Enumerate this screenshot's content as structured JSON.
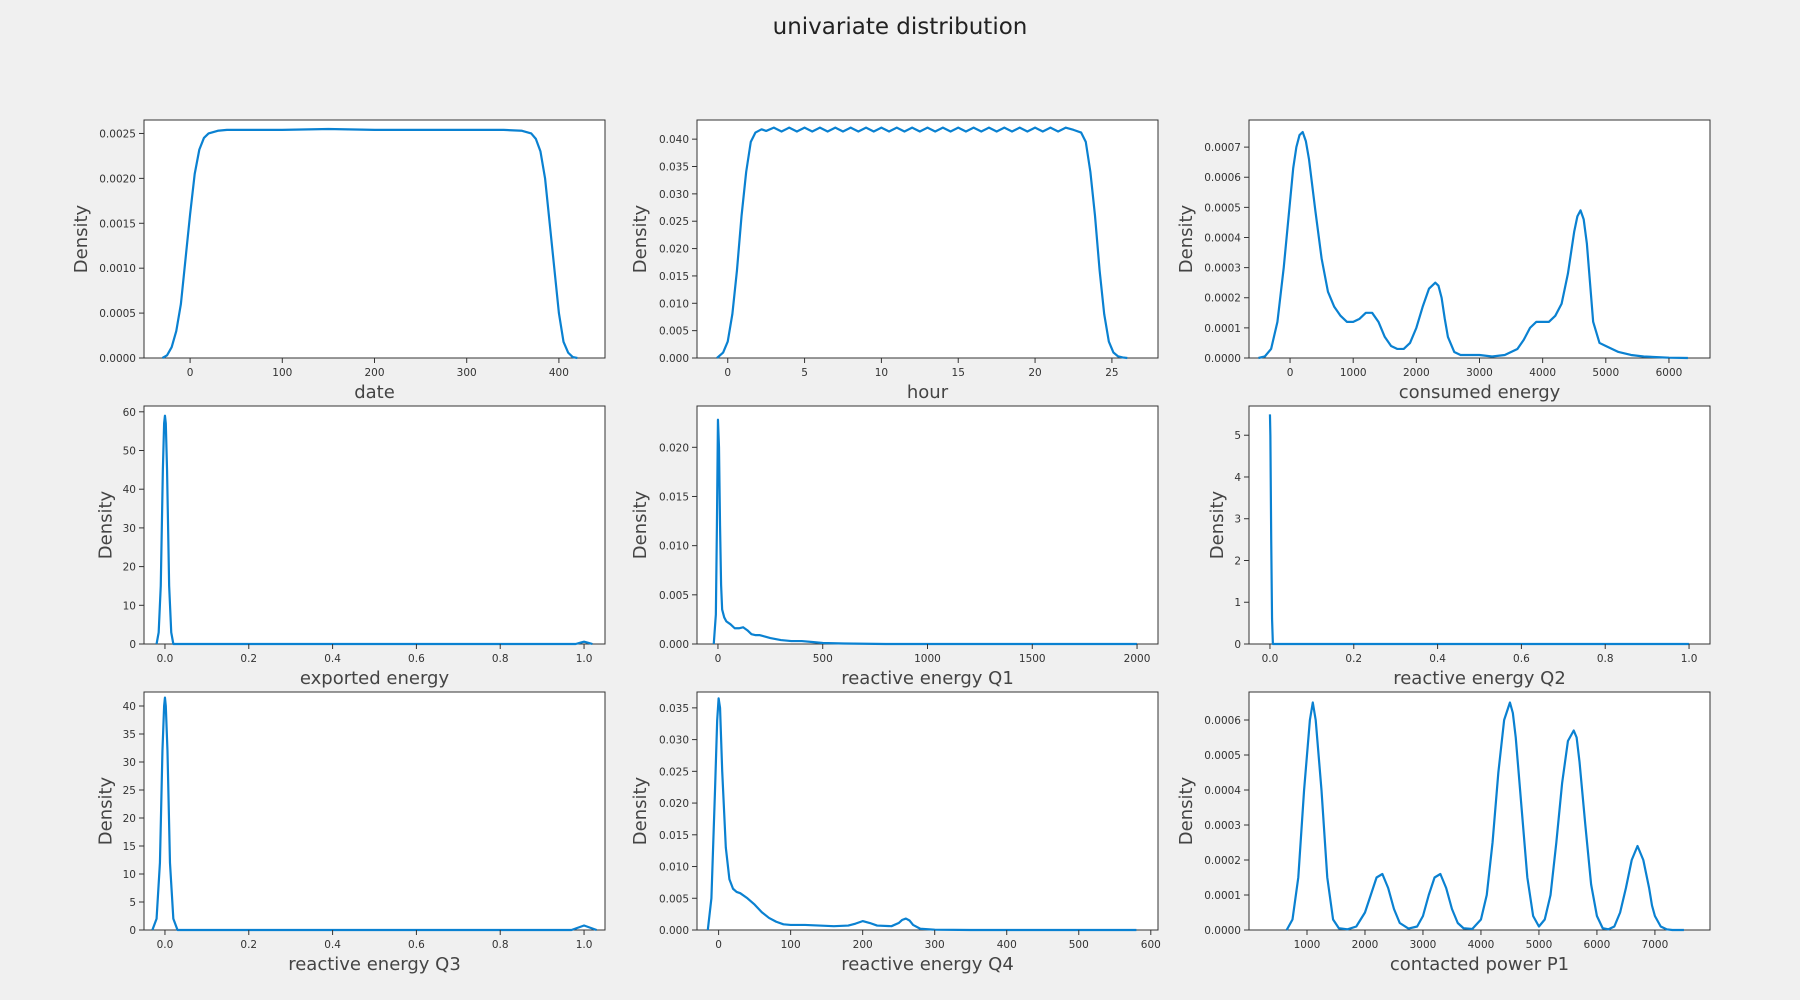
{
  "figure": {
    "title": "univariate distribution",
    "background": "#f0f0f0",
    "line_color": "#0a81d1"
  },
  "chart_data": [
    {
      "type": "line",
      "xlabel": "date",
      "ylabel": "Density",
      "xlim": [
        -50,
        450
      ],
      "ylim": [
        0,
        0.00265
      ],
      "xticks": [
        0,
        100,
        200,
        300,
        400
      ],
      "xtick_labels": [
        "0",
        "100",
        "200",
        "300",
        "400"
      ],
      "yticks": [
        0,
        0.0005,
        0.001,
        0.0015,
        0.002,
        0.0025
      ],
      "ytick_labels": [
        "0.0000",
        "0.0005",
        "0.0010",
        "0.0015",
        "0.0020",
        "0.0025"
      ],
      "x": [
        -30,
        -25,
        -20,
        -15,
        -10,
        -5,
        0,
        5,
        10,
        15,
        20,
        30,
        40,
        60,
        100,
        150,
        200,
        250,
        300,
        340,
        360,
        370,
        375,
        380,
        385,
        390,
        395,
        400,
        405,
        410,
        415,
        420
      ],
      "y": [
        0.0,
        3e-05,
        0.00012,
        0.0003,
        0.0006,
        0.0011,
        0.0016,
        0.00205,
        0.00232,
        0.00245,
        0.0025,
        0.00253,
        0.00254,
        0.00254,
        0.00254,
        0.00255,
        0.00254,
        0.00254,
        0.00254,
        0.00254,
        0.00253,
        0.0025,
        0.00244,
        0.0023,
        0.002,
        0.0015,
        0.001,
        0.0005,
        0.00018,
        6e-05,
        1e-05,
        0.0
      ]
    },
    {
      "type": "line",
      "xlabel": "hour",
      "ylabel": "Density",
      "xlim": [
        -2,
        28
      ],
      "ylim": [
        0,
        0.0435
      ],
      "xticks": [
        0,
        5,
        10,
        15,
        20,
        25
      ],
      "xtick_labels": [
        "0",
        "5",
        "10",
        "15",
        "20",
        "25"
      ],
      "yticks": [
        0,
        0.005,
        0.01,
        0.015,
        0.02,
        0.025,
        0.03,
        0.035,
        0.04
      ],
      "ytick_labels": [
        "0.000",
        "0.005",
        "0.010",
        "0.015",
        "0.020",
        "0.025",
        "0.030",
        "0.035",
        "0.040"
      ],
      "x": [
        -0.7,
        -0.3,
        0,
        0.3,
        0.6,
        0.9,
        1.2,
        1.5,
        1.8,
        2.2,
        2.5,
        3,
        3.5,
        4,
        4.5,
        5,
        5.5,
        6,
        6.5,
        7,
        7.5,
        8,
        8.5,
        9,
        9.5,
        10,
        10.5,
        11,
        11.5,
        12,
        12.5,
        13,
        13.5,
        14,
        14.5,
        15,
        15.5,
        16,
        16.5,
        17,
        17.5,
        18,
        18.5,
        19,
        19.5,
        20,
        20.5,
        21,
        21.5,
        22,
        22.5,
        23,
        23.3,
        23.6,
        23.9,
        24.2,
        24.5,
        24.8,
        25.1,
        25.4,
        25.7,
        26
      ],
      "y": [
        0.0,
        0.001,
        0.003,
        0.008,
        0.016,
        0.026,
        0.034,
        0.0395,
        0.0412,
        0.0418,
        0.0415,
        0.0421,
        0.0414,
        0.0421,
        0.0414,
        0.0421,
        0.0414,
        0.0421,
        0.0414,
        0.0421,
        0.0414,
        0.0421,
        0.0414,
        0.0421,
        0.0414,
        0.0421,
        0.0414,
        0.0421,
        0.0414,
        0.0421,
        0.0414,
        0.0421,
        0.0414,
        0.0421,
        0.0414,
        0.0421,
        0.0414,
        0.0421,
        0.0414,
        0.0421,
        0.0414,
        0.0421,
        0.0414,
        0.0421,
        0.0414,
        0.0421,
        0.0414,
        0.0421,
        0.0414,
        0.0421,
        0.0417,
        0.0412,
        0.0395,
        0.034,
        0.026,
        0.016,
        0.008,
        0.003,
        0.001,
        0.0003,
        0.0001,
        0.0
      ]
    },
    {
      "type": "line",
      "xlabel": "consumed energy",
      "ylabel": "Density",
      "xlim": [
        -650,
        6650
      ],
      "ylim": [
        0,
        0.00079
      ],
      "xticks": [
        0,
        1000,
        2000,
        3000,
        4000,
        5000,
        6000
      ],
      "xtick_labels": [
        "0",
        "1000",
        "2000",
        "3000",
        "4000",
        "5000",
        "6000"
      ],
      "yticks": [
        0,
        0.0001,
        0.0002,
        0.0003,
        0.0004,
        0.0005,
        0.0006,
        0.0007
      ],
      "ytick_labels": [
        "0.0000",
        "0.0001",
        "0.0002",
        "0.0003",
        "0.0004",
        "0.0005",
        "0.0006",
        "0.0007"
      ],
      "x": [
        -500,
        -400,
        -300,
        -200,
        -100,
        0,
        50,
        100,
        150,
        200,
        250,
        300,
        400,
        500,
        600,
        700,
        800,
        900,
        1000,
        1100,
        1200,
        1300,
        1400,
        1500,
        1600,
        1700,
        1800,
        1900,
        2000,
        2100,
        2200,
        2300,
        2350,
        2400,
        2450,
        2500,
        2600,
        2700,
        2800,
        3000,
        3200,
        3400,
        3600,
        3700,
        3800,
        3900,
        4000,
        4100,
        4200,
        4300,
        4400,
        4500,
        4550,
        4600,
        4650,
        4700,
        4750,
        4800,
        4900,
        5000,
        5100,
        5200,
        5400,
        5600,
        5800,
        6000,
        6300
      ],
      "y": [
        0.0,
        5e-06,
        3e-05,
        0.00012,
        0.0003,
        0.00052,
        0.00063,
        0.0007,
        0.00074,
        0.00075,
        0.00072,
        0.00066,
        0.00049,
        0.00033,
        0.00022,
        0.00017,
        0.00014,
        0.00012,
        0.00012,
        0.00013,
        0.00015,
        0.00015,
        0.00012,
        7e-05,
        4e-05,
        3e-05,
        3e-05,
        5e-05,
        0.0001,
        0.00017,
        0.00023,
        0.00025,
        0.00024,
        0.0002,
        0.00013,
        7e-05,
        2e-05,
        1e-05,
        1e-05,
        1e-05,
        5e-06,
        1e-05,
        3e-05,
        6e-05,
        0.0001,
        0.00012,
        0.00012,
        0.00012,
        0.00014,
        0.00018,
        0.00028,
        0.00042,
        0.00047,
        0.00049,
        0.00046,
        0.00038,
        0.00025,
        0.00012,
        5e-05,
        4e-05,
        3e-05,
        2e-05,
        1e-05,
        5e-06,
        3e-06,
        1e-06,
        0.0
      ]
    },
    {
      "type": "line",
      "xlabel": "exported energy",
      "ylabel": "Density",
      "xlim": [
        -0.05,
        1.05
      ],
      "ylim": [
        0,
        61.5
      ],
      "xticks": [
        0,
        0.2,
        0.4,
        0.6,
        0.8,
        1.0
      ],
      "xtick_labels": [
        "0.0",
        "0.2",
        "0.4",
        "0.6",
        "0.8",
        "1.0"
      ],
      "yticks": [
        0,
        10,
        20,
        30,
        40,
        50,
        60
      ],
      "ytick_labels": [
        "0",
        "10",
        "20",
        "30",
        "40",
        "50",
        "60"
      ],
      "x": [
        -0.02,
        -0.015,
        -0.01,
        -0.005,
        -0.002,
        0,
        0.002,
        0.005,
        0.01,
        0.015,
        0.02,
        0.1,
        0.5,
        0.98,
        0.99,
        1.0,
        1.01,
        1.02
      ],
      "y": [
        0.0,
        3.0,
        15.0,
        45.0,
        57.0,
        59.0,
        57.0,
        45.0,
        15.0,
        3.0,
        0.0,
        0.0,
        0.0,
        0.0,
        0.3,
        0.6,
        0.3,
        0.0
      ]
    },
    {
      "type": "line",
      "xlabel": "reactive energy Q1",
      "ylabel": "Density",
      "xlim": [
        -100,
        2100
      ],
      "ylim": [
        0,
        0.0242
      ],
      "xticks": [
        0,
        500,
        1000,
        1500,
        2000
      ],
      "xtick_labels": [
        "0",
        "500",
        "1000",
        "1500",
        "2000"
      ],
      "yticks": [
        0,
        0.005,
        0.01,
        0.015,
        0.02
      ],
      "ytick_labels": [
        "0.000",
        "0.005",
        "0.010",
        "0.015",
        "0.020"
      ],
      "x": [
        -20,
        -10,
        -5,
        0,
        5,
        10,
        15,
        20,
        30,
        40,
        60,
        80,
        100,
        120,
        140,
        160,
        180,
        200,
        250,
        300,
        350,
        400,
        450,
        500,
        600,
        800,
        1000,
        1500,
        2000
      ],
      "y": [
        0.0,
        0.003,
        0.012,
        0.0228,
        0.02,
        0.012,
        0.006,
        0.0035,
        0.0027,
        0.0023,
        0.002,
        0.0016,
        0.0016,
        0.0017,
        0.0014,
        0.001,
        0.0009,
        0.0009,
        0.0006,
        0.0004,
        0.0003,
        0.0003,
        0.0002,
        0.0001,
        5e-05,
        0.0,
        0.0,
        0.0,
        0.0
      ]
    },
    {
      "type": "line",
      "xlabel": "reactive energy Q2",
      "ylabel": "Density",
      "xlim": [
        -0.05,
        1.05
      ],
      "ylim": [
        0,
        5.7
      ],
      "xticks": [
        0,
        0.2,
        0.4,
        0.6,
        0.8,
        1.0
      ],
      "xtick_labels": [
        "0.0",
        "0.2",
        "0.4",
        "0.6",
        "0.8",
        "1.0"
      ],
      "yticks": [
        0,
        1,
        2,
        3,
        4,
        5
      ],
      "ytick_labels": [
        "0",
        "1",
        "2",
        "3",
        "4",
        "5"
      ],
      "x": [
        0,
        0.001,
        0.003,
        0.005,
        0.007,
        0.05,
        0.5,
        1.0
      ],
      "y": [
        5.5,
        5.0,
        2.5,
        0.6,
        0.0,
        0.0,
        0.0,
        0.0
      ]
    },
    {
      "type": "line",
      "xlabel": "reactive energy Q3",
      "ylabel": "Density",
      "xlim": [
        -0.05,
        1.05
      ],
      "ylim": [
        0,
        42.5
      ],
      "xticks": [
        0,
        0.2,
        0.4,
        0.6,
        0.8,
        1.0
      ],
      "xtick_labels": [
        "0.0",
        "0.2",
        "0.4",
        "0.6",
        "0.8",
        "1.0"
      ],
      "yticks": [
        0,
        5,
        10,
        15,
        20,
        25,
        30,
        35,
        40
      ],
      "ytick_labels": [
        "0",
        "5",
        "10",
        "15",
        "20",
        "25",
        "30",
        "35",
        "40"
      ],
      "x": [
        -0.03,
        -0.02,
        -0.012,
        -0.006,
        -0.002,
        0,
        0.002,
        0.006,
        0.012,
        0.02,
        0.03,
        0.1,
        0.5,
        0.97,
        0.985,
        1.0,
        1.015,
        1.03
      ],
      "y": [
        0.0,
        2.0,
        12.0,
        32.0,
        40.0,
        41.5,
        40.0,
        32.0,
        12.0,
        2.0,
        0.0,
        0.0,
        0.0,
        0.0,
        0.4,
        0.8,
        0.4,
        0.0
      ]
    },
    {
      "type": "line",
      "xlabel": "reactive energy Q4",
      "ylabel": "Density",
      "xlim": [
        -30,
        610
      ],
      "ylim": [
        0,
        0.0375
      ],
      "xticks": [
        0,
        100,
        200,
        300,
        400,
        500,
        600
      ],
      "xtick_labels": [
        "0",
        "100",
        "200",
        "300",
        "400",
        "500",
        "600"
      ],
      "yticks": [
        0,
        0.005,
        0.01,
        0.015,
        0.02,
        0.025,
        0.03,
        0.035
      ],
      "ytick_labels": [
        "0.000",
        "0.005",
        "0.010",
        "0.015",
        "0.020",
        "0.025",
        "0.030",
        "0.035"
      ],
      "x": [
        -15,
        -10,
        -5,
        -2,
        0,
        2,
        5,
        10,
        15,
        20,
        25,
        30,
        40,
        50,
        60,
        70,
        80,
        90,
        100,
        120,
        140,
        160,
        180,
        190,
        200,
        210,
        220,
        240,
        250,
        255,
        260,
        265,
        270,
        280,
        300,
        350,
        400,
        500,
        580
      ],
      "y": [
        0.0,
        0.005,
        0.022,
        0.033,
        0.0365,
        0.035,
        0.025,
        0.013,
        0.008,
        0.0065,
        0.006,
        0.0058,
        0.005,
        0.004,
        0.0028,
        0.0019,
        0.0013,
        0.0009,
        0.0008,
        0.0008,
        0.0007,
        0.0006,
        0.0007,
        0.001,
        0.0014,
        0.0011,
        0.0007,
        0.0006,
        0.0011,
        0.0016,
        0.0018,
        0.0015,
        0.0008,
        0.0002,
        5e-05,
        0.0,
        0.0,
        0.0,
        0.0
      ]
    },
    {
      "type": "line",
      "xlabel": "contacted power P1",
      "ylabel": "Density",
      "xlim": [
        -0.0,
        7950
      ],
      "ylim": [
        0,
        0.00068
      ],
      "xticks": [
        1000,
        2000,
        3000,
        4000,
        5000,
        6000,
        7000
      ],
      "xtick_labels": [
        "1000",
        "2000",
        "3000",
        "4000",
        "5000",
        "6000",
        "7000"
      ],
      "yticks": [
        0,
        0.0001,
        0.0002,
        0.0003,
        0.0004,
        0.0005,
        0.0006
      ],
      "ytick_labels": [
        "0.0000",
        "0.0001",
        "0.0002",
        "0.0003",
        "0.0004",
        "0.0005",
        "0.0006"
      ],
      "x": [
        650,
        750,
        850,
        950,
        1050,
        1100,
        1150,
        1250,
        1350,
        1450,
        1550,
        1700,
        1850,
        2000,
        2100,
        2200,
        2300,
        2400,
        2500,
        2600,
        2750,
        2900,
        3000,
        3100,
        3200,
        3300,
        3400,
        3500,
        3600,
        3700,
        3850,
        4000,
        4100,
        4200,
        4300,
        4400,
        4500,
        4550,
        4600,
        4700,
        4800,
        4900,
        5000,
        5100,
        5200,
        5300,
        5400,
        5500,
        5600,
        5650,
        5700,
        5800,
        5900,
        6000,
        6100,
        6200,
        6300,
        6400,
        6500,
        6600,
        6700,
        6800,
        6900,
        6950,
        7000,
        7100,
        7200,
        7300,
        7400,
        7500
      ],
      "y": [
        0.0,
        3e-05,
        0.00015,
        0.0004,
        0.0006,
        0.00065,
        0.0006,
        0.0004,
        0.00015,
        3e-05,
        5e-06,
        2e-06,
        1e-05,
        5e-05,
        0.0001,
        0.00015,
        0.00016,
        0.00012,
        6e-05,
        2e-05,
        4e-06,
        1e-05,
        4e-05,
        0.0001,
        0.00015,
        0.00016,
        0.00012,
        6e-05,
        2e-05,
        5e-06,
        3e-06,
        3e-05,
        0.0001,
        0.00025,
        0.00045,
        0.0006,
        0.00065,
        0.00062,
        0.00055,
        0.00035,
        0.00015,
        4e-05,
        1e-05,
        3e-05,
        0.0001,
        0.00025,
        0.00042,
        0.00054,
        0.00057,
        0.00055,
        0.00048,
        0.0003,
        0.00013,
        4e-05,
        5e-06,
        2e-06,
        1e-05,
        5e-05,
        0.00012,
        0.0002,
        0.00024,
        0.0002,
        0.00012,
        7e-05,
        4e-05,
        1e-05,
        2e-06,
        0.0,
        0.0,
        0.0
      ]
    }
  ]
}
